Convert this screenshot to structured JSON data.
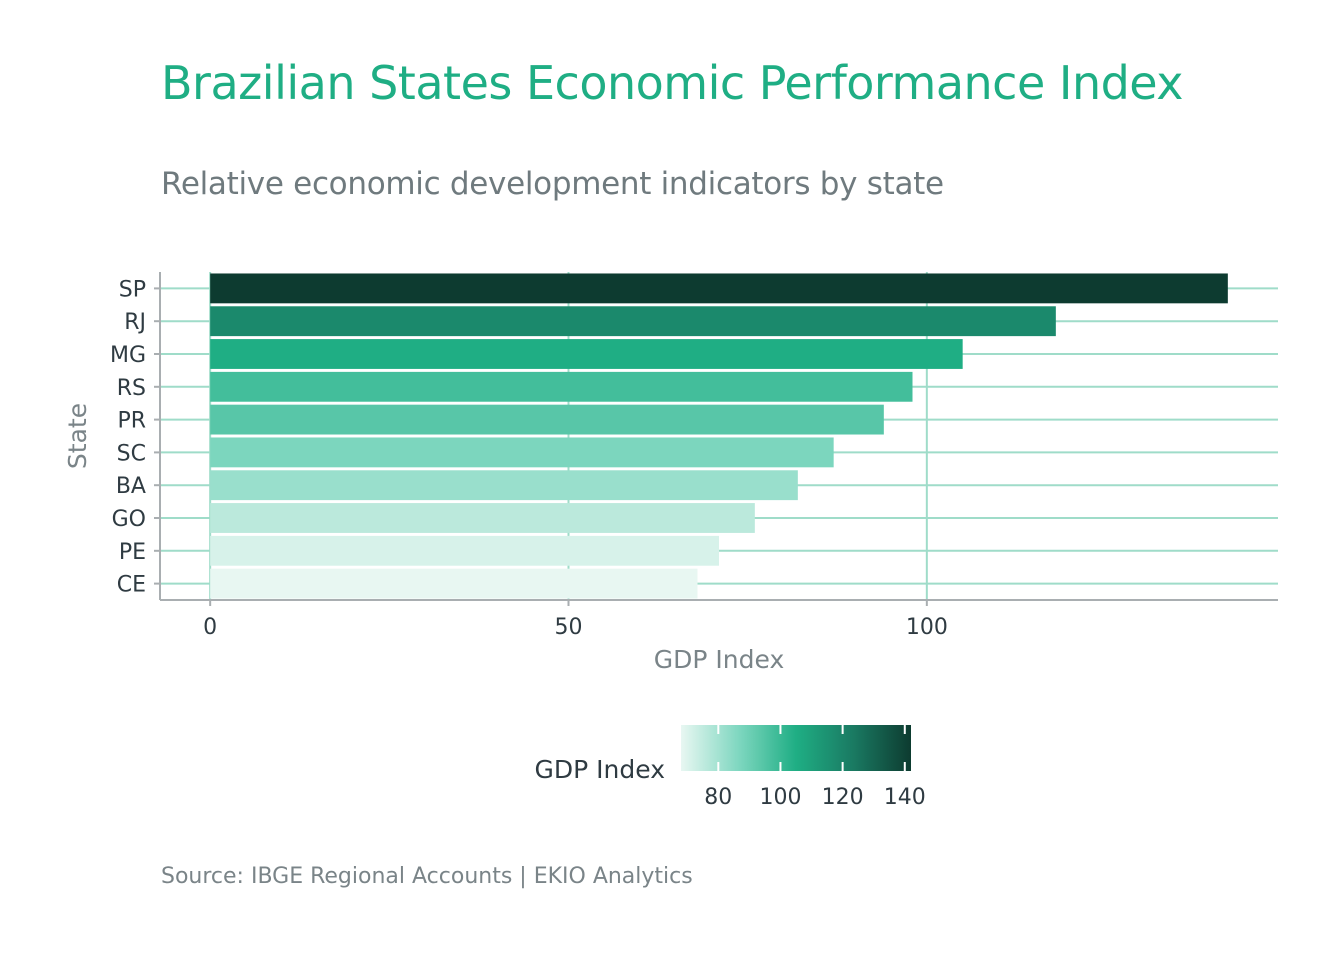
{
  "title": "Brazilian States Economic Performance Index",
  "subtitle": "Relative economic development indicators by state",
  "caption": "Source: IBGE Regional Accounts | EKIO Analytics",
  "colors": {
    "title": "#1fae84",
    "grid": "#9fdcc9",
    "axis": "#a9aeb1",
    "text": "#2f3b42",
    "muted": "#7a8488",
    "scale": [
      "#e8f7f2",
      "#7fd7c0",
      "#1fae84",
      "#1a7a62",
      "#0d3b30"
    ]
  },
  "chart_data": {
    "type": "bar",
    "orientation": "horizontal",
    "xlabel": "GDP Index",
    "ylabel": "State",
    "xlim": [
      -7,
      149
    ],
    "x_ticks": [
      0,
      50,
      100
    ],
    "categories": [
      "SP",
      "RJ",
      "MG",
      "RS",
      "PR",
      "SC",
      "BA",
      "GO",
      "PE",
      "CE"
    ],
    "values": [
      142,
      118,
      105,
      98,
      94,
      87,
      82,
      76,
      71,
      68
    ],
    "grid": true,
    "legend": {
      "title": "GDP Index",
      "type": "colorbar",
      "position": "bottom",
      "range": [
        68,
        142
      ],
      "ticks": [
        80,
        100,
        120,
        140
      ]
    }
  }
}
